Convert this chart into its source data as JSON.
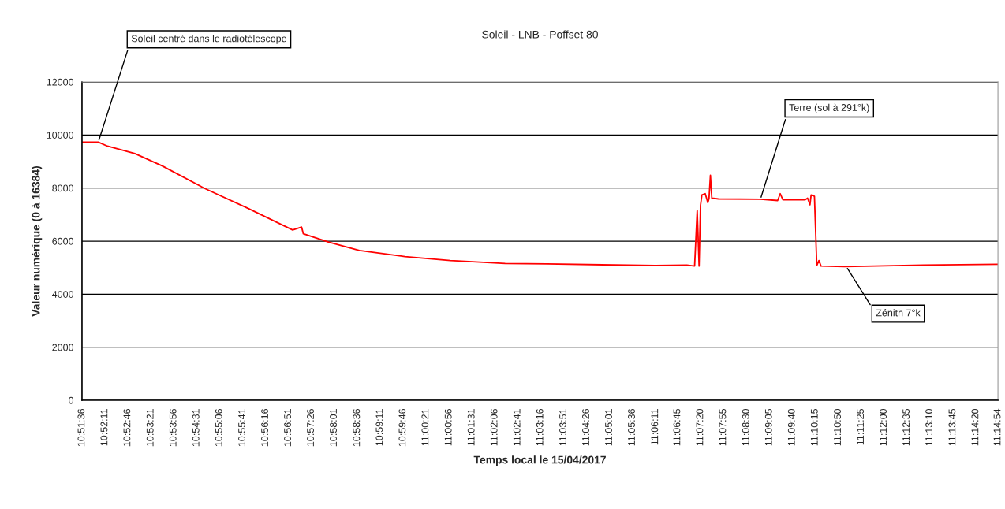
{
  "chart_data": {
    "type": "line",
    "title": "Soleil - LNB - Poffset 80",
    "xlabel": "Temps local le 15/04/2017",
    "ylabel": "Valeur numérique (0 à 16384)",
    "x": [
      10.86,
      10.8669,
      10.8708,
      10.8824,
      10.8939,
      10.9119,
      10.93,
      10.9493,
      10.9531,
      10.9538,
      10.9647,
      10.9776,
      10.9969,
      11.0162,
      11.0394,
      11.0571,
      11.103,
      11.1164,
      11.1197,
      11.1208,
      11.1216,
      11.1222,
      11.1228,
      11.1242,
      11.1253,
      11.1258,
      11.1264,
      11.127,
      11.1298,
      11.1476,
      11.1549,
      11.156,
      11.1571,
      11.1666,
      11.1676,
      11.1686,
      11.1691,
      11.1705,
      11.1715,
      11.1724,
      11.1733,
      11.1833,
      11.2168,
      11.2483
    ],
    "series": [
      {
        "color": "#ff0000",
        "values": [
          9730,
          9730,
          9580,
          9300,
          8840,
          7990,
          7250,
          6420,
          6530,
          6280,
          5960,
          5650,
          5420,
          5270,
          5160,
          5140,
          5080,
          5100,
          5060,
          7150,
          5060,
          7350,
          7740,
          7790,
          7450,
          7600,
          8480,
          7620,
          7590,
          7580,
          7530,
          7790,
          7560,
          7560,
          7620,
          7370,
          7740,
          7690,
          5080,
          5270,
          5060,
          5040,
          5100,
          5130
        ]
      }
    ],
    "xlim": [
      10.86,
      11.2483
    ],
    "ylim": [
      0,
      12000
    ],
    "yticks": [
      0,
      2000,
      4000,
      6000,
      8000,
      10000,
      12000
    ],
    "xticks": [
      {
        "value": 10.86,
        "label": "10:51:36"
      },
      {
        "value": 10.8697,
        "label": "10:52:11"
      },
      {
        "value": 10.8794,
        "label": "10:52:46"
      },
      {
        "value": 10.8892,
        "label": "10:53:21"
      },
      {
        "value": 10.8989,
        "label": "10:53:56"
      },
      {
        "value": 10.9086,
        "label": "10:54:31"
      },
      {
        "value": 10.9183,
        "label": "10:55:06"
      },
      {
        "value": 10.9281,
        "label": "10:55:41"
      },
      {
        "value": 10.9378,
        "label": "10:56:16"
      },
      {
        "value": 10.9475,
        "label": "10:56:51"
      },
      {
        "value": 10.9572,
        "label": "10:57:26"
      },
      {
        "value": 10.9669,
        "label": "10:58:01"
      },
      {
        "value": 10.9767,
        "label": "10:58:36"
      },
      {
        "value": 10.9864,
        "label": "10:59:11"
      },
      {
        "value": 10.9961,
        "label": "10:59:46"
      },
      {
        "value": 11.0058,
        "label": "11:00:21"
      },
      {
        "value": 11.0156,
        "label": "11:00:56"
      },
      {
        "value": 11.0253,
        "label": "11:01:31"
      },
      {
        "value": 11.035,
        "label": "11:02:06"
      },
      {
        "value": 11.0447,
        "label": "11:02:41"
      },
      {
        "value": 11.0544,
        "label": "11:03:16"
      },
      {
        "value": 11.0642,
        "label": "11:03:51"
      },
      {
        "value": 11.0739,
        "label": "11:04:26"
      },
      {
        "value": 11.0836,
        "label": "11:05:01"
      },
      {
        "value": 11.0933,
        "label": "11:05:36"
      },
      {
        "value": 11.1031,
        "label": "11:06:11"
      },
      {
        "value": 11.1125,
        "label": "11:06:45"
      },
      {
        "value": 11.1222,
        "label": "11:07:20"
      },
      {
        "value": 11.1319,
        "label": "11:07:55"
      },
      {
        "value": 11.1417,
        "label": "11:08:30"
      },
      {
        "value": 11.1514,
        "label": "11:09:05"
      },
      {
        "value": 11.1611,
        "label": "11:09:40"
      },
      {
        "value": 11.1708,
        "label": "11:10:15"
      },
      {
        "value": 11.1806,
        "label": "11:10:50"
      },
      {
        "value": 11.1903,
        "label": "11:11:25"
      },
      {
        "value": 11.2,
        "label": "11:12:00"
      },
      {
        "value": 11.2097,
        "label": "11:12:35"
      },
      {
        "value": 11.2194,
        "label": "11:13:10"
      },
      {
        "value": 11.2292,
        "label": "11:13:45"
      },
      {
        "value": 11.2389,
        "label": "11:14:20"
      },
      {
        "value": 11.2483,
        "label": "11:14:54"
      }
    ],
    "grid": "y",
    "marker": "none",
    "line_style": "solid",
    "annotations": [
      {
        "text": "Soleil centré dans le radiotélescope",
        "x": 10.8669,
        "y": 9730
      },
      {
        "text": "Terre (sol à 291°k)",
        "x": 11.1476,
        "y": 7580
      },
      {
        "text": "Zénith 7°k",
        "x": 11.184,
        "y": 5040
      }
    ]
  }
}
